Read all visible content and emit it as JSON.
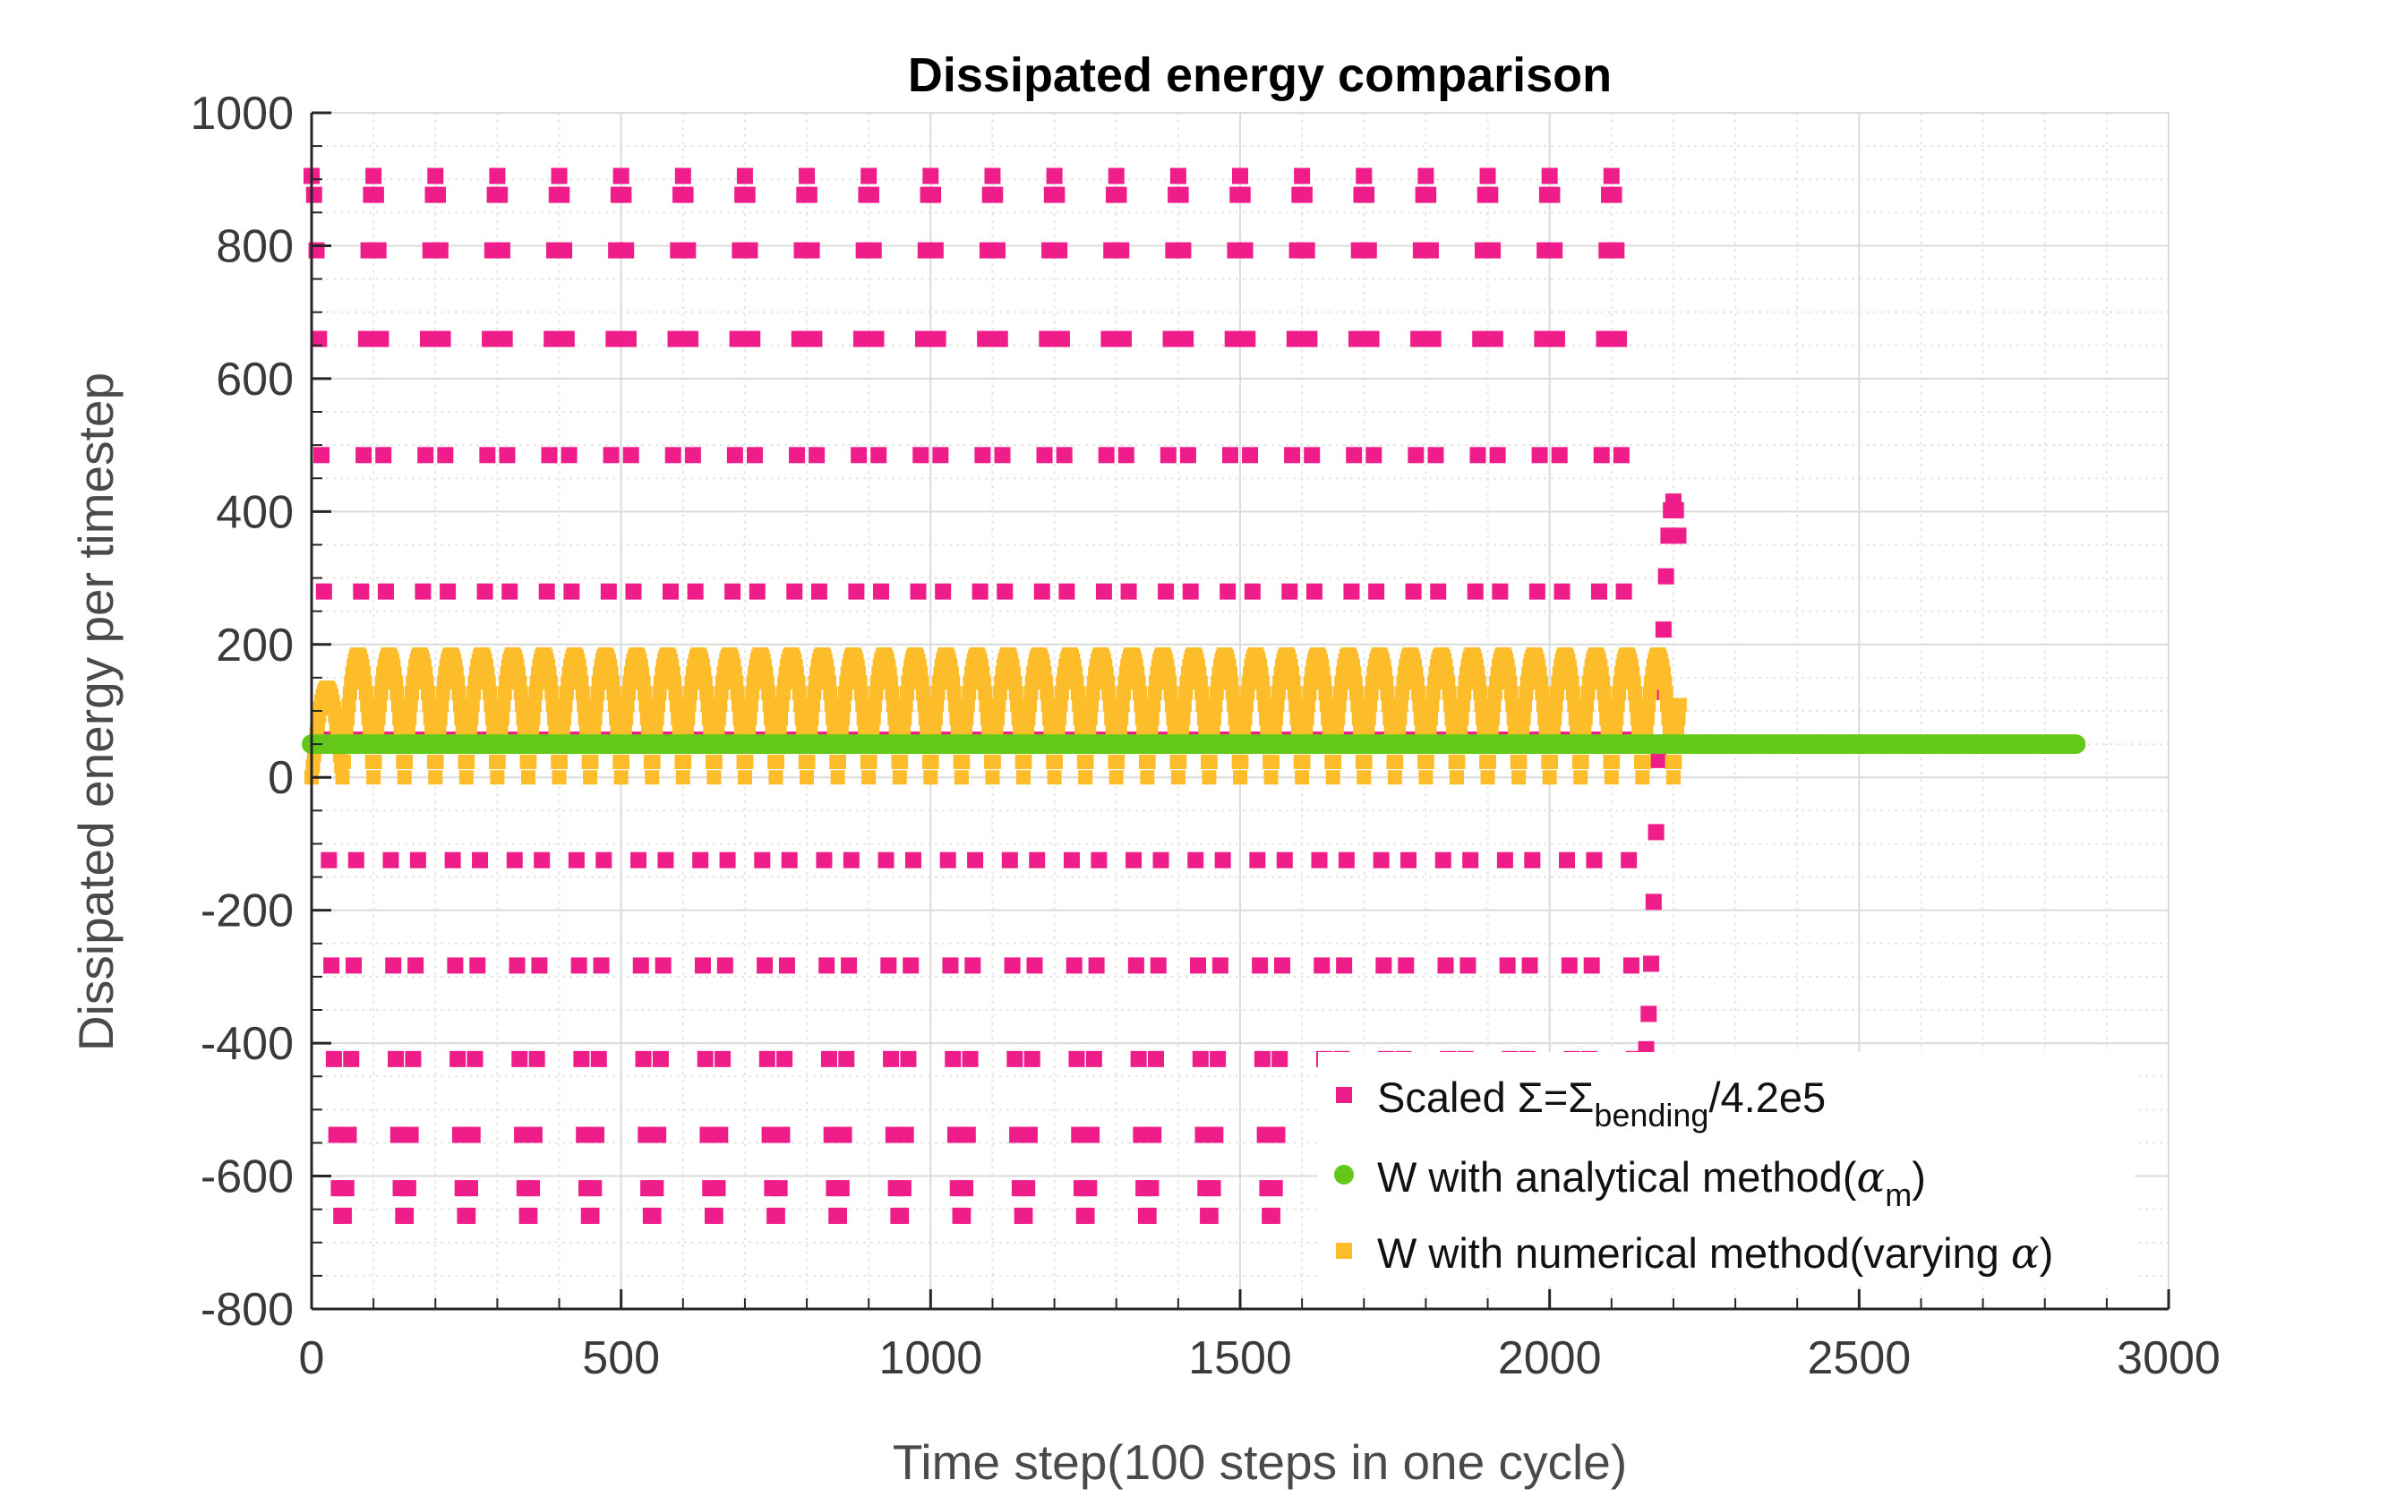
{
  "chart_data": {
    "type": "scatter",
    "title": "Dissipated energy comparison",
    "xlabel": "Time step(100 steps in one cycle)",
    "ylabel": "Dissipated energy per timestep",
    "xlim": [
      0,
      3000
    ],
    "ylim": [
      -800,
      1000
    ],
    "xticks": [
      "0",
      "500",
      "1000",
      "1500",
      "2000",
      "2500",
      "3000"
    ],
    "yticks": [
      "-800",
      "-600",
      "-400",
      "-200",
      "0",
      "200",
      "400",
      "600",
      "800",
      "1000"
    ],
    "grid": true,
    "legend_position": "bottom-right",
    "colors": {
      "scaled": "#ee1d8a",
      "analytical": "#64c81a",
      "numerical": "#fdbc2a"
    },
    "series": [
      {
        "key": "scaled",
        "marker": "square",
        "legend": {
          "text_pre": "Scaled Σ=Σ",
          "sub": "bending",
          "text_post": "/4.2e5"
        },
        "pattern": {
          "description_values": "oscillation sampled at each time step",
          "x_range": [
            0,
            2210
          ],
          "period": 100,
          "max": 905,
          "min": -665,
          "last_partial_cycle_max": 415,
          "last_partial_cycle_min": -440
        }
      },
      {
        "key": "analytical",
        "marker": "circle",
        "legend": {
          "text_pre": "W with analytical method(",
          "greek": "α",
          "sub": "m",
          "text_post": ")"
        },
        "pattern": {
          "x_range": [
            0,
            2850
          ],
          "value": 50
        }
      },
      {
        "key": "numerical",
        "marker": "square",
        "legend": {
          "text_pre": "W with numerical method(varying ",
          "greek": "α",
          "text_post": ")"
        },
        "pattern": {
          "x_range": [
            0,
            2210
          ],
          "period": 50,
          "max": 185,
          "min": 0,
          "first_peak": 135
        }
      }
    ]
  }
}
